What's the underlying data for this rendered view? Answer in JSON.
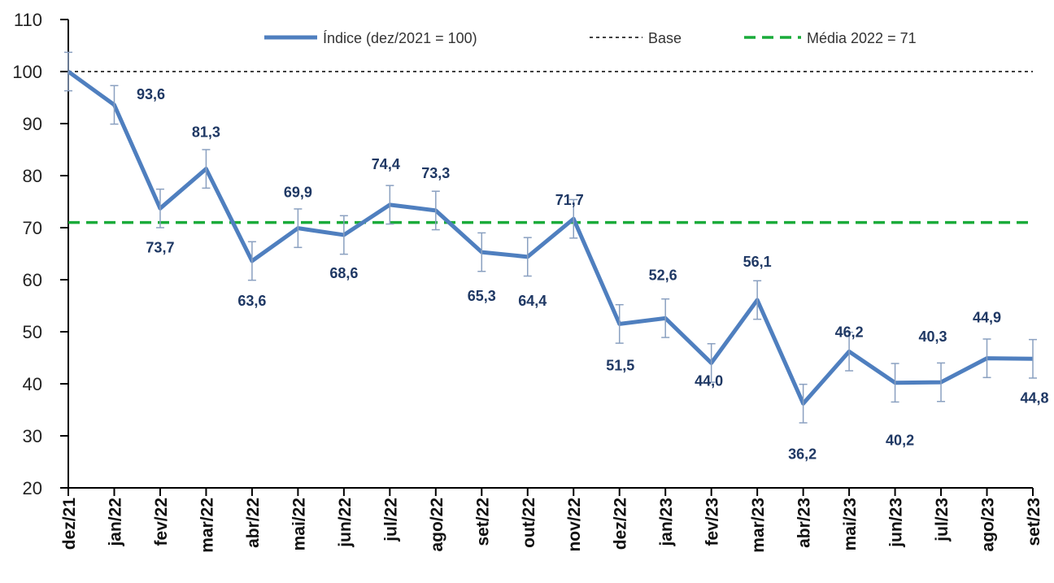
{
  "chart_data": {
    "type": "line",
    "categories": [
      "dez/21",
      "jan/22",
      "fev/22",
      "mar/22",
      "abr/22",
      "mai/22",
      "jun/22",
      "jul/22",
      "ago/22",
      "set/22",
      "out/22",
      "nov/22",
      "dez/22",
      "jan/23",
      "fev/23",
      "mar/23",
      "abr/23",
      "mai/23",
      "jun/23",
      "jul/23",
      "ago/23",
      "set/23"
    ],
    "series": [
      {
        "name": "Índice (dez/2021 = 100)",
        "color": "#4f7fbf",
        "values": [
          100,
          93.6,
          73.7,
          81.3,
          63.6,
          69.9,
          68.6,
          74.4,
          73.3,
          65.3,
          64.4,
          71.7,
          51.5,
          52.6,
          44.0,
          56.1,
          36.2,
          46.2,
          40.2,
          40.3,
          44.9,
          44.8
        ],
        "value_labels": [
          null,
          "93,6",
          "73,7",
          "81,3",
          "63,6",
          "69,9",
          "68,6",
          "74,4",
          "73,3",
          "65,3",
          "64,4",
          "71,7",
          "51,5",
          "52,6",
          "44,0",
          "56,1",
          "36,2",
          "46,2",
          "40,2",
          "40,3",
          "44,9",
          "44,8"
        ],
        "errors": [
          3.7,
          3.7,
          3.7,
          3.7,
          3.7,
          3.7,
          3.7,
          3.7,
          3.7,
          3.7,
          3.7,
          3.7,
          3.7,
          3.7,
          3.7,
          3.7,
          3.7,
          3.7,
          3.7,
          3.7,
          3.7,
          3.7
        ]
      }
    ],
    "reference_lines": [
      {
        "name": "Base",
        "value": 100,
        "color": "#000000",
        "style": "dotted"
      },
      {
        "name": "Média 2022 = 71",
        "value": 71,
        "color": "#1aab3a",
        "style": "dashed"
      }
    ],
    "ylim": [
      20,
      110
    ],
    "yticks": [
      20,
      30,
      40,
      50,
      60,
      70,
      80,
      90,
      100,
      110
    ],
    "grid": false
  }
}
